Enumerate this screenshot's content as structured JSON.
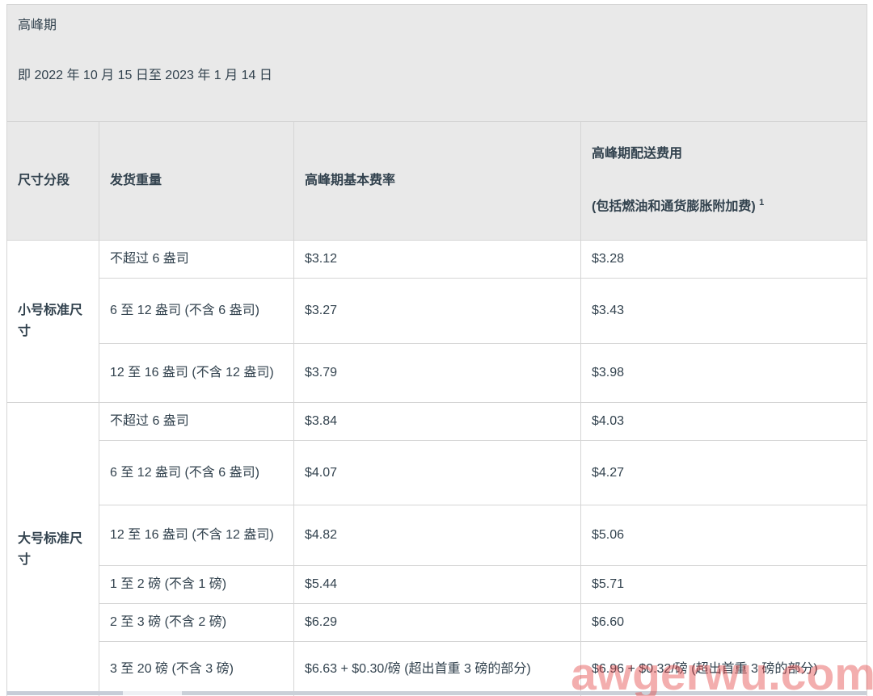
{
  "section_header": {
    "title": "高峰期",
    "date_range": "即 2022 年 10 月 15 日至 2023 年 1 月 14 日"
  },
  "table": {
    "header": {
      "size_tier": "尺寸分段",
      "shipping_weight": "发货重量",
      "peak_base_rate": "高峰期基本费率",
      "peak_fulfillment_fee_line1": "高峰期配送费用",
      "peak_fulfillment_fee_line2": "(包括燃油和通货膨胀附加费)",
      "peak_fulfillment_fee_footnote": "1"
    },
    "groups": [
      {
        "size_tier": "小号标准尺寸",
        "rows": [
          {
            "weight": "不超过 6 盎司",
            "base_rate": "$3.12",
            "peak_fee": "$3.28"
          },
          {
            "weight": "6 至 12 盎司 (不含 6 盎司)",
            "base_rate": "$3.27",
            "peak_fee": "$3.43"
          },
          {
            "weight": "12 至 16 盎司 (不含 12 盎司)",
            "base_rate": "$3.79",
            "peak_fee": "$3.98"
          }
        ]
      },
      {
        "size_tier": "大号标准尺寸",
        "rows": [
          {
            "weight": "不超过 6 盎司",
            "base_rate": "$3.84",
            "peak_fee": "$4.03"
          },
          {
            "weight": "6 至 12 盎司 (不含 6 盎司)",
            "base_rate": "$4.07",
            "peak_fee": "$4.27"
          },
          {
            "weight": "12 至 16 盎司 (不含 12 盎司)",
            "base_rate": "$4.82",
            "peak_fee": "$5.06"
          },
          {
            "weight": "1 至 2 磅 (不含 1 磅)",
            "base_rate": "$5.44",
            "peak_fee": "$5.71"
          },
          {
            "weight": "2 至 3 磅 (不含 2 磅)",
            "base_rate": "$6.29",
            "peak_fee": "$6.60"
          },
          {
            "weight": "3 至 20 磅 (不含 3 磅)",
            "base_rate": "$6.63 + $0.30/磅 (超出首重 3 磅的部分)",
            "peak_fee": "$6.96 + $0.32/磅 (超出首重 3 磅的部分)"
          }
        ]
      }
    ]
  },
  "watermark": "awgerwu.com",
  "colors": {
    "section_bg": "#e9e9e9",
    "border": "#d5d5d5",
    "text": "#32424e",
    "watermark_red": "rgba(226,62,62,0.42)",
    "bottom_strip_gray": "#c7cdd8"
  }
}
